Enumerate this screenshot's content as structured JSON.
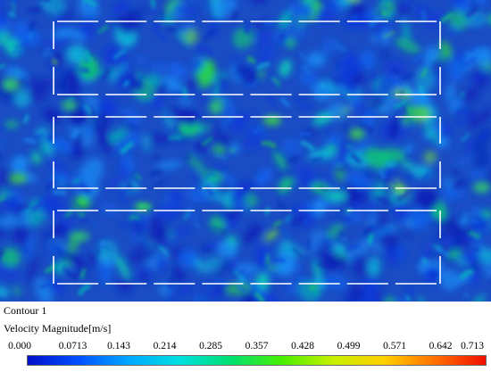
{
  "legend": {
    "contour_name": "Contour 1",
    "variable": "Velocity Magnitude[m/s]",
    "min": 0,
    "max": 0.713,
    "ticks": [
      "0.000",
      "0.0713",
      "0.143",
      "0.214",
      "0.285",
      "0.357",
      "0.428",
      "0.499",
      "0.571",
      "0.642",
      "0.713"
    ],
    "colormap": [
      "#0010c8",
      "#0050ff",
      "#00a8ff",
      "#00e0e0",
      "#00e070",
      "#48f000",
      "#c8f000",
      "#ffd000",
      "#ff7000",
      "#f01000"
    ]
  },
  "field": {
    "background_color": "#1a4cc4",
    "wall_color": "#ffffff",
    "blocks": 3,
    "columns": 8
  }
}
